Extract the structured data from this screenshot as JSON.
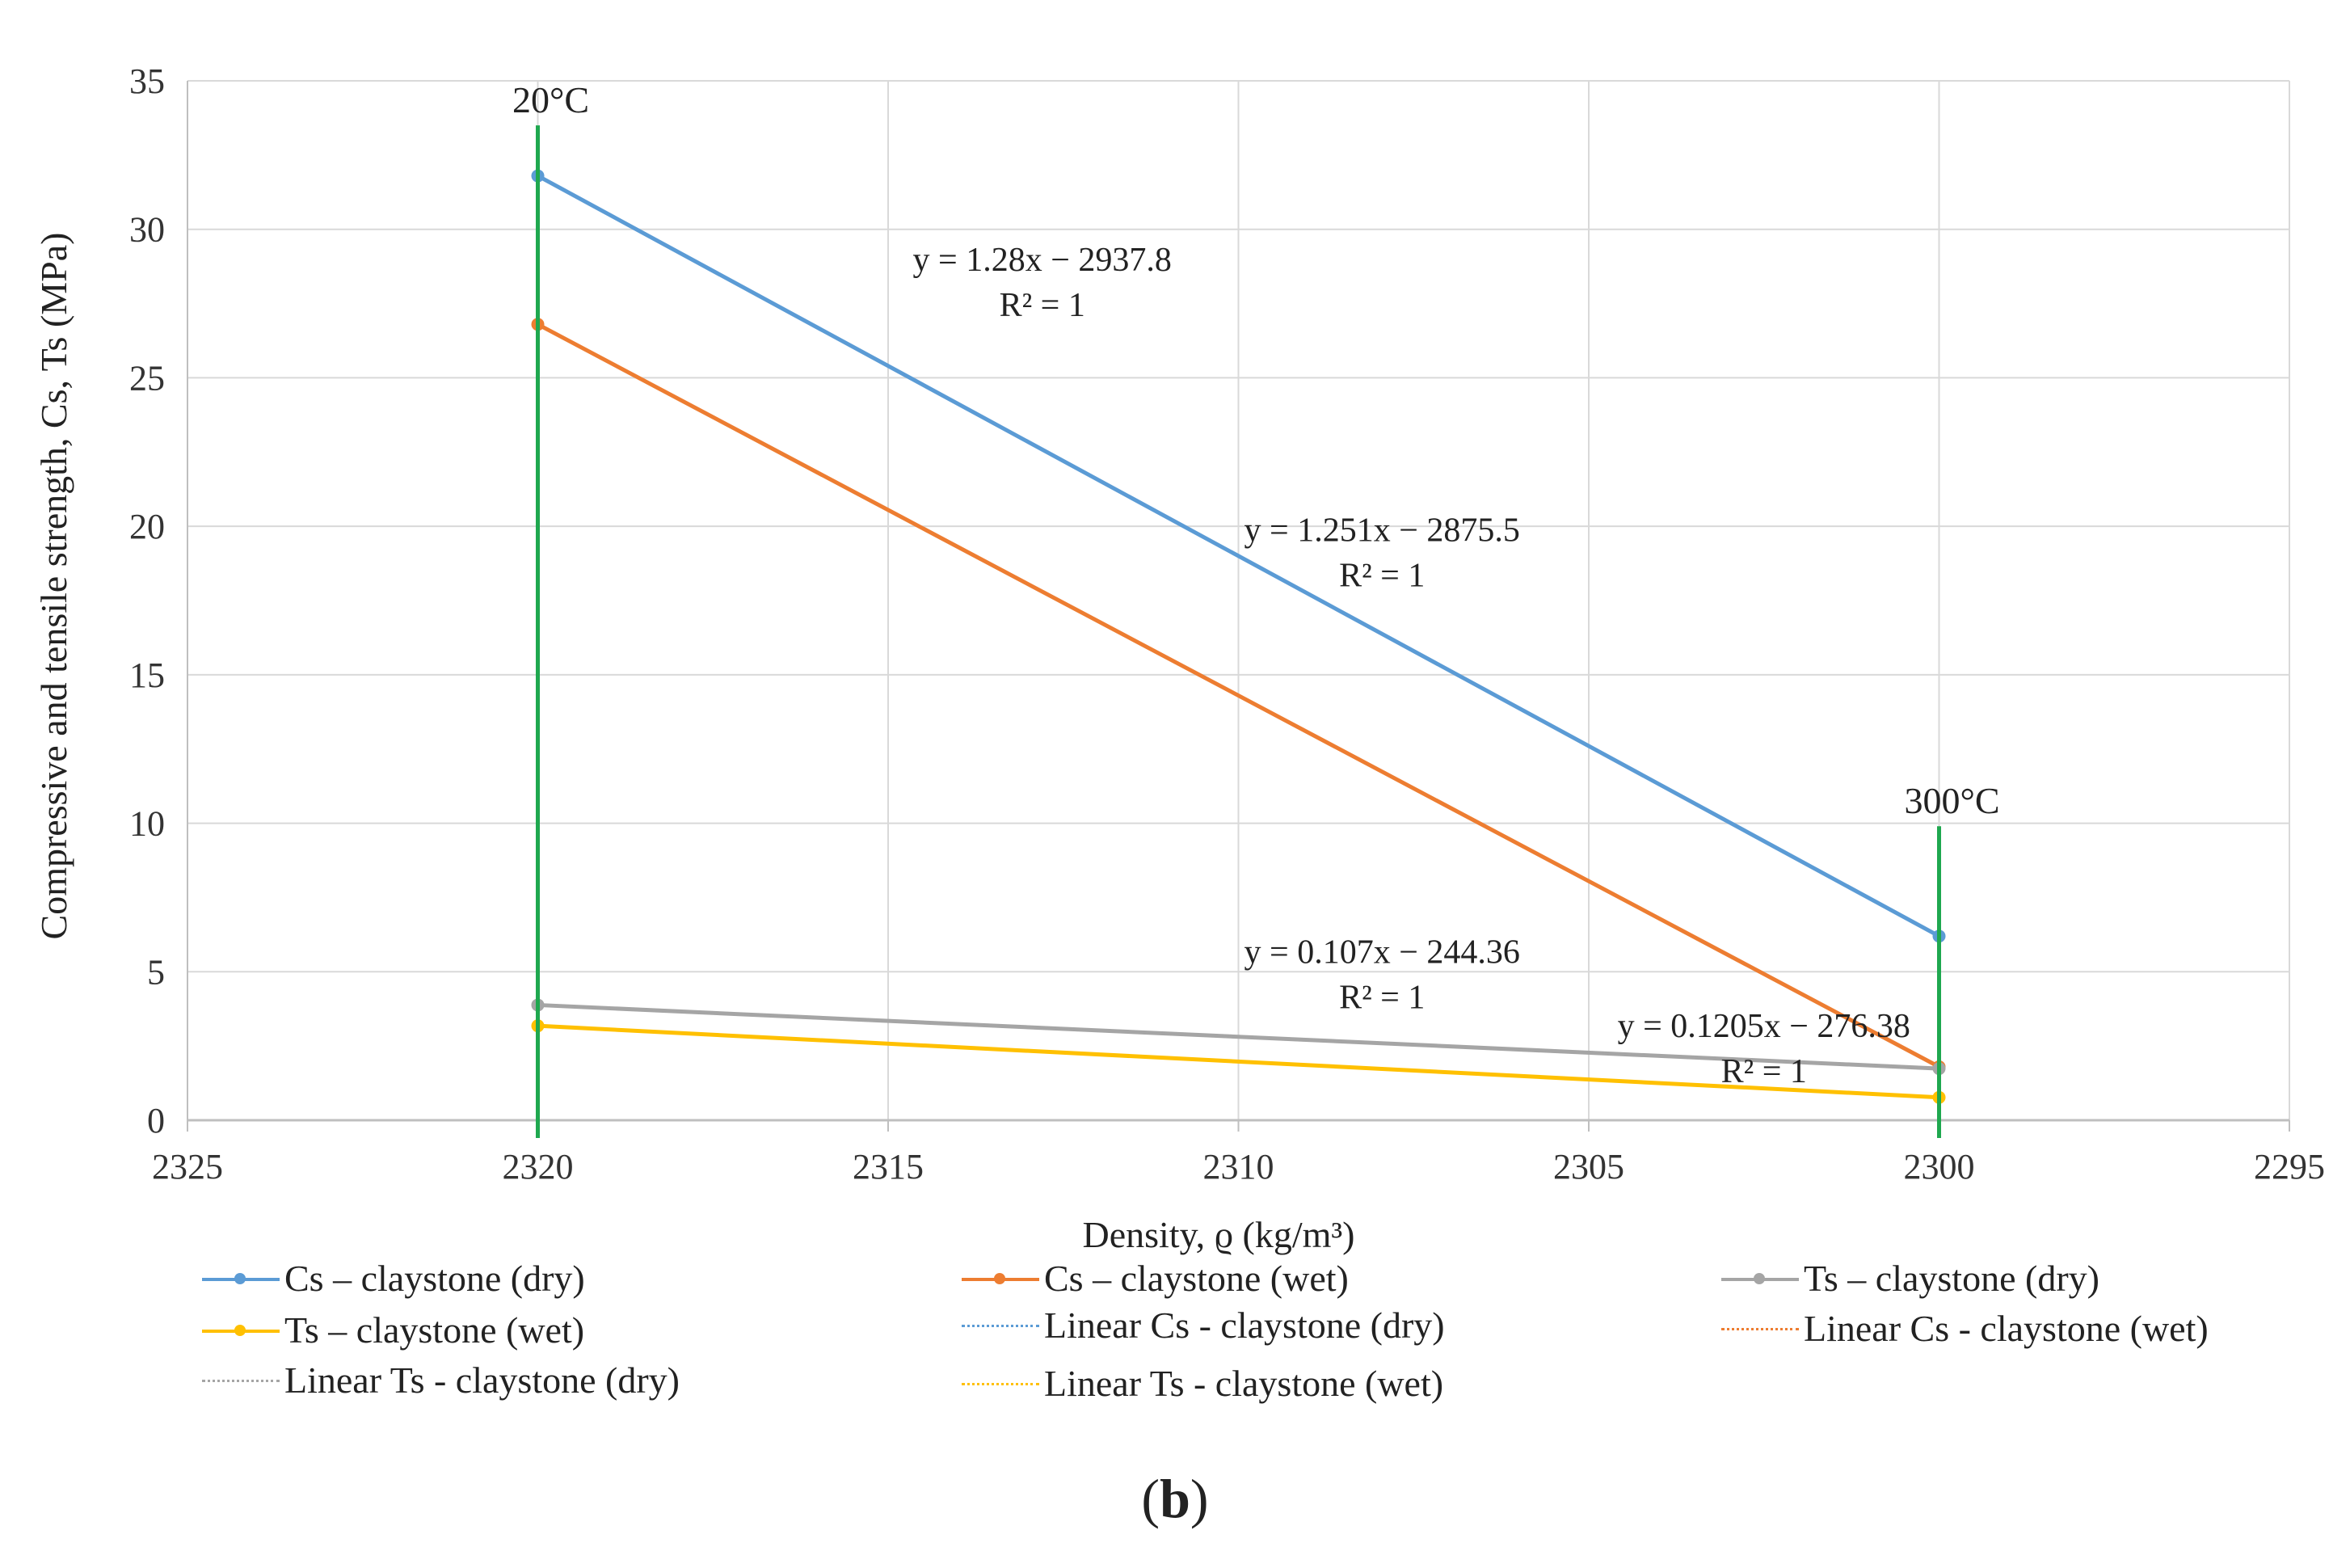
{
  "chart_data": {
    "type": "line",
    "panel_label": {
      "open": "(",
      "letter": "b",
      "close": ")"
    },
    "xlabel": "Density, ϱ (kg/m³)",
    "ylabel": "Compressive and tensile strength, Cs, Ts (MPa)",
    "xlim": [
      2325,
      2295
    ],
    "x_reversed": true,
    "ylim": [
      0,
      35
    ],
    "x_ticks": [
      2325,
      2320,
      2315,
      2310,
      2305,
      2300,
      2295
    ],
    "y_ticks": [
      0,
      5,
      10,
      15,
      20,
      25,
      30,
      35
    ],
    "grid": true,
    "legend_position": "bottom",
    "series": [
      {
        "name": "Cs – claystone (dry)",
        "color": "#5b9bd5",
        "x": [
          2320,
          2300
        ],
        "y": [
          31.8,
          6.2
        ]
      },
      {
        "name": "Cs – claystone (wet)",
        "color": "#ed7d31",
        "x": [
          2320,
          2300
        ],
        "y": [
          26.8,
          1.8
        ]
      },
      {
        "name": "Ts – claystone (dry)",
        "color": "#a5a5a5",
        "x": [
          2320,
          2300
        ],
        "y": [
          3.88,
          1.74
        ]
      },
      {
        "name": "Ts – claystone (wet)",
        "color": "#ffc000",
        "x": [
          2320,
          2300
        ],
        "y": [
          3.18,
          0.77
        ]
      }
    ],
    "trendlines": [
      {
        "name": "Linear Cs - claystone (dry)",
        "color": "#5b9bd5"
      },
      {
        "name": "Linear Cs - claystone (wet)",
        "color": "#ed7d31"
      },
      {
        "name": "Linear Ts - claystone (dry)",
        "color": "#a5a5a5"
      },
      {
        "name": "Linear Ts - claystone (wet)",
        "color": "#ffc000"
      }
    ],
    "vertical_markers": [
      {
        "x": 2320,
        "label": "20°C",
        "y_top": 33.5,
        "color": "#1fa84f"
      },
      {
        "x": 2300,
        "label": "300°C",
        "y_top": 9.9,
        "color": "#1fa84f"
      }
    ],
    "annotations": [
      {
        "equation": "y = 1.28x − 2937.8",
        "r2": "R² = 1",
        "x": 2312.8,
        "y": 28.6
      },
      {
        "equation": "y = 1.251x − 2875.5",
        "r2": "R² = 1",
        "x": 2307.95,
        "y": 19.5
      },
      {
        "equation": "y = 0.107x − 244.36",
        "r2": "R² = 1",
        "x": 2307.95,
        "y": 5.3
      },
      {
        "equation": "y = 0.1205x − 276.38",
        "r2": "R² = 1",
        "x": 2302.5,
        "y": 2.8
      }
    ]
  }
}
